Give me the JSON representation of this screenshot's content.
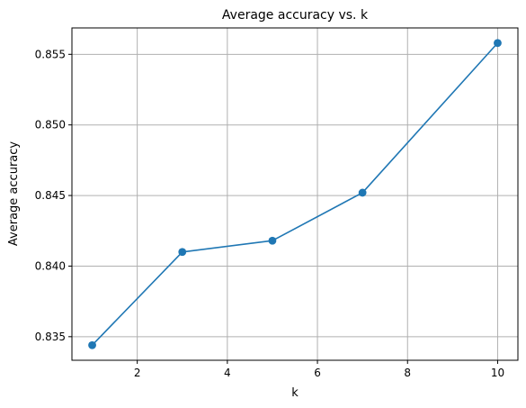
{
  "chart_data": {
    "type": "line",
    "title": "Average accuracy vs. k",
    "xlabel": "k",
    "ylabel": "Average accuracy",
    "x": [
      1,
      3,
      5,
      7,
      10
    ],
    "series": [
      {
        "name": "Average accuracy",
        "values": [
          0.8344,
          0.841,
          0.8418,
          0.8452,
          0.8558
        ],
        "color": "#1f77b4",
        "marker": "circle"
      }
    ],
    "xlim": [
      0.55,
      10.45
    ],
    "ylim": [
      0.83333,
      0.85687
    ],
    "xticks": [
      2,
      4,
      6,
      8,
      10
    ],
    "xtick_labels": [
      "2",
      "4",
      "6",
      "8",
      "10"
    ],
    "yticks": [
      0.835,
      0.84,
      0.845,
      0.85,
      0.855
    ],
    "ytick_labels": [
      "0.835",
      "0.840",
      "0.845",
      "0.850",
      "0.855"
    ],
    "grid": true,
    "grid_color": "#b0b0b0",
    "legend": false
  }
}
